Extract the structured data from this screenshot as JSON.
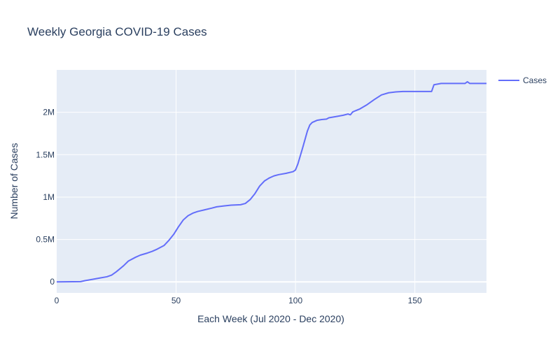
{
  "chart_data": {
    "type": "line",
    "title": "Weekly Georgia COVID-19 Cases",
    "xlabel": "Each Week (Jul 2020 - Dec 2020)",
    "ylabel": "Number of Cases",
    "xlim": [
      0,
      180
    ],
    "ylim": [
      -130000,
      2500000
    ],
    "x_ticks": [
      0,
      50,
      100,
      150
    ],
    "y_ticks": [
      {
        "value": 0,
        "label": "0"
      },
      {
        "value": 500000,
        "label": "0.5M"
      },
      {
        "value": 1000000,
        "label": "1M"
      },
      {
        "value": 1500000,
        "label": "1.5M"
      },
      {
        "value": 2000000,
        "label": "2M"
      }
    ],
    "grid": true,
    "legend_position": "top-right",
    "series": [
      {
        "name": "Cases",
        "color": "#636efa",
        "points": [
          [
            0,
            0
          ],
          [
            10,
            3000
          ],
          [
            12,
            15000
          ],
          [
            15,
            30000
          ],
          [
            18,
            45000
          ],
          [
            21,
            60000
          ],
          [
            23,
            80000
          ],
          [
            25,
            120000
          ],
          [
            28,
            190000
          ],
          [
            30,
            245000
          ],
          [
            33,
            290000
          ],
          [
            35,
            315000
          ],
          [
            38,
            340000
          ],
          [
            40,
            360000
          ],
          [
            42,
            385000
          ],
          [
            45,
            430000
          ],
          [
            47,
            490000
          ],
          [
            49,
            560000
          ],
          [
            51,
            650000
          ],
          [
            53,
            730000
          ],
          [
            55,
            780000
          ],
          [
            57,
            810000
          ],
          [
            59,
            830000
          ],
          [
            62,
            850000
          ],
          [
            65,
            870000
          ],
          [
            67,
            885000
          ],
          [
            70,
            895000
          ],
          [
            73,
            905000
          ],
          [
            77,
            910000
          ],
          [
            79,
            925000
          ],
          [
            81,
            970000
          ],
          [
            83,
            1040000
          ],
          [
            85,
            1130000
          ],
          [
            87,
            1190000
          ],
          [
            89,
            1225000
          ],
          [
            91,
            1250000
          ],
          [
            93,
            1265000
          ],
          [
            96,
            1280000
          ],
          [
            99,
            1300000
          ],
          [
            100,
            1320000
          ],
          [
            101,
            1390000
          ],
          [
            103,
            1580000
          ],
          [
            105,
            1780000
          ],
          [
            106,
            1850000
          ],
          [
            107,
            1880000
          ],
          [
            109,
            1905000
          ],
          [
            111,
            1915000
          ],
          [
            113,
            1920000
          ],
          [
            114,
            1935000
          ],
          [
            117,
            1950000
          ],
          [
            120,
            1965000
          ],
          [
            122,
            1980000
          ],
          [
            123,
            1970000
          ],
          [
            124,
            2005000
          ],
          [
            127,
            2040000
          ],
          [
            130,
            2090000
          ],
          [
            133,
            2150000
          ],
          [
            136,
            2205000
          ],
          [
            139,
            2230000
          ],
          [
            142,
            2240000
          ],
          [
            145,
            2245000
          ],
          [
            150,
            2245000
          ],
          [
            157,
            2245000
          ],
          [
            158,
            2325000
          ],
          [
            161,
            2340000
          ],
          [
            165,
            2340000
          ],
          [
            171,
            2340000
          ],
          [
            172,
            2360000
          ],
          [
            173,
            2340000
          ],
          [
            180,
            2340000
          ]
        ]
      }
    ]
  }
}
